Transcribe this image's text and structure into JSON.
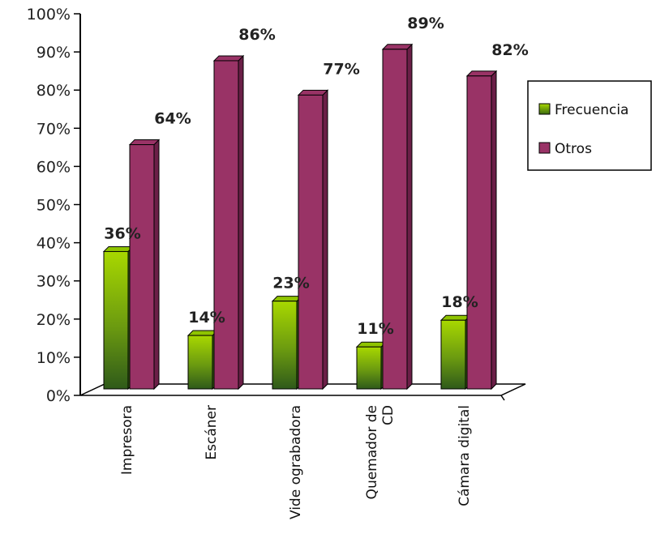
{
  "chart_data": {
    "type": "bar",
    "categories": [
      "Impresora",
      "Escáner",
      "Videograbadora",
      "Quemador de CD",
      "Cámara digital"
    ],
    "category_label_lines": [
      [
        "Impresora"
      ],
      [
        "Escáner"
      ],
      [
        "Vide ograbadora"
      ],
      [
        "Quemador de",
        "CD"
      ],
      [
        "Cámara digital"
      ]
    ],
    "series": [
      {
        "name": "Frecuencia",
        "values": [
          36,
          14,
          23,
          11,
          18
        ],
        "labels": [
          "36%",
          "14%",
          "23%",
          "11%",
          "18%"
        ],
        "color": "#8fc400",
        "color_dark": "#3a6a10"
      },
      {
        "name": "Otros",
        "values": [
          64,
          86,
          77,
          89,
          82
        ],
        "labels": [
          "64%",
          "86%",
          "77%",
          "89%",
          "82%"
        ],
        "color": "#993366",
        "color_dark": "#6b1f47"
      }
    ],
    "ylim": [
      0,
      100
    ],
    "yticks": [
      0,
      10,
      20,
      30,
      40,
      50,
      60,
      70,
      80,
      90,
      100
    ],
    "ytick_labels": [
      "0%",
      "10%",
      "20%",
      "30%",
      "40%",
      "50%",
      "60%",
      "70%",
      "80%",
      "90%",
      "100%"
    ],
    "legend_position": "right",
    "grid": false,
    "style": "3d-column"
  }
}
